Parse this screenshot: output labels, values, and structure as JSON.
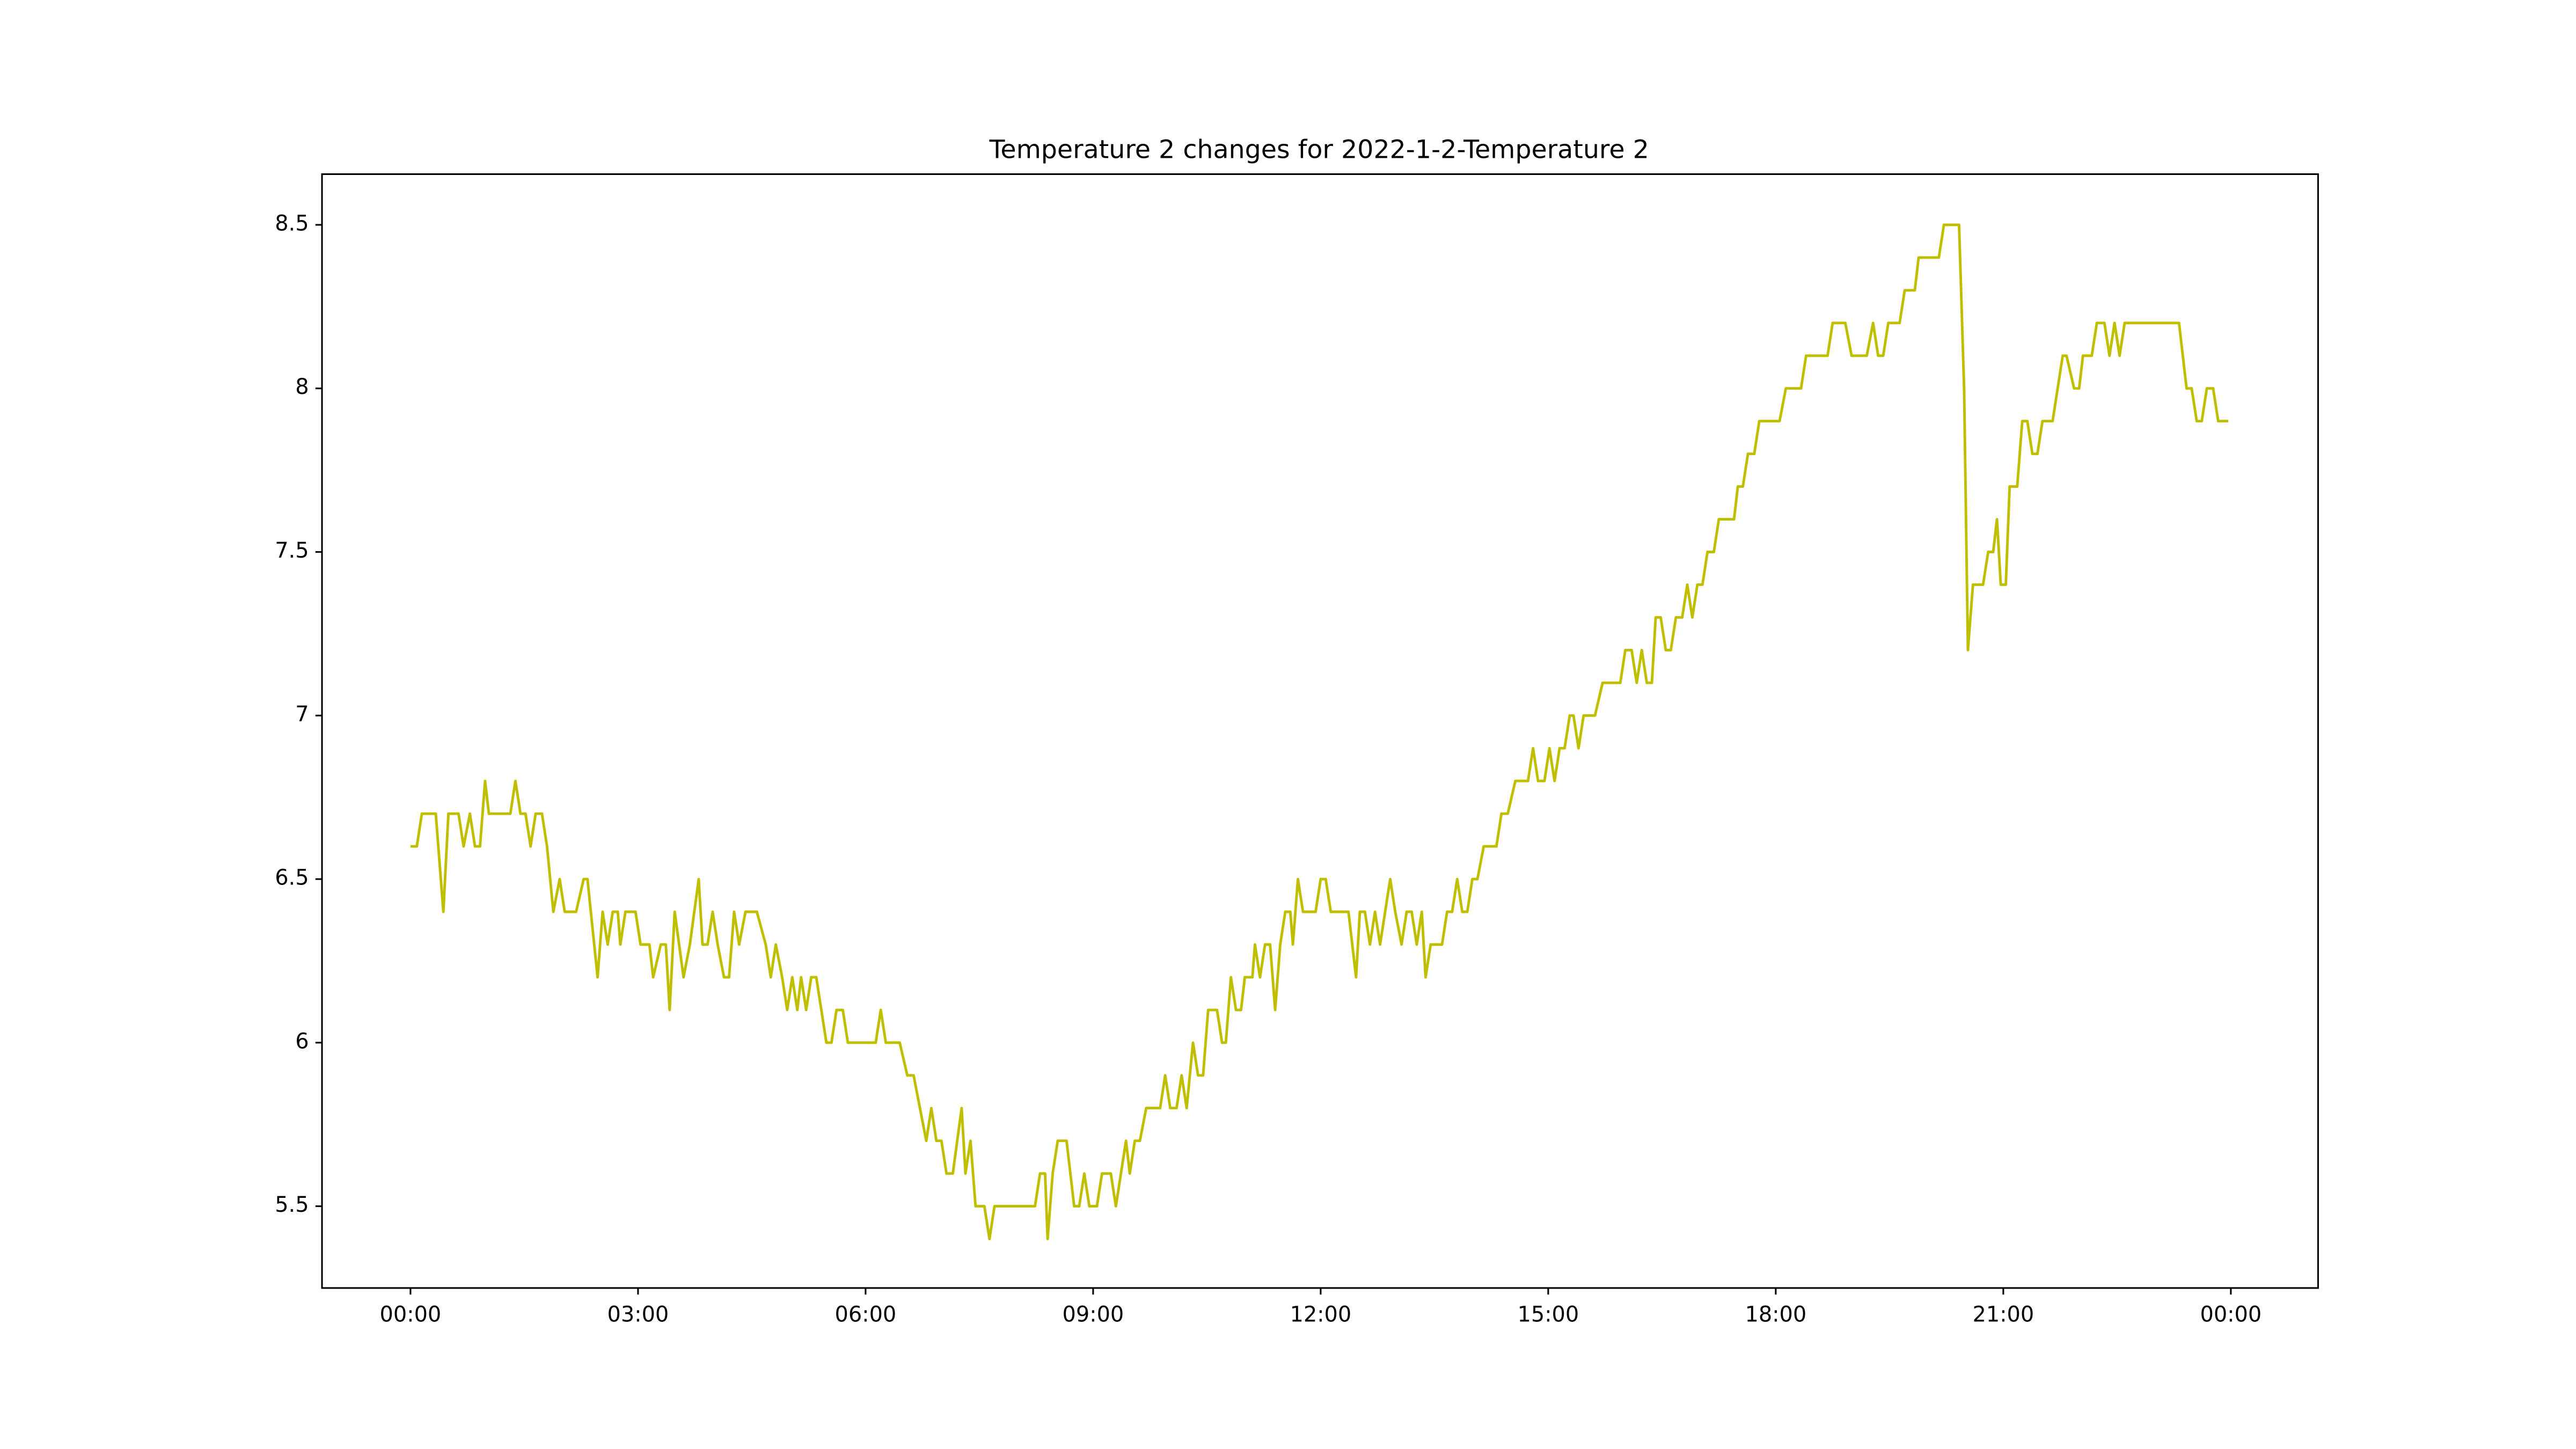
{
  "chart_data": {
    "type": "line",
    "title": "Temperature 2 changes for 2022-1-2-Temperature 2",
    "x": [
      0,
      5,
      9,
      20,
      26,
      30,
      38,
      42,
      47,
      51,
      55,
      59,
      62,
      79,
      83,
      87,
      91,
      95,
      99,
      104,
      108,
      113,
      118,
      122,
      131,
      137,
      140,
      148,
      152,
      156,
      160,
      164,
      166,
      170,
      178,
      182,
      189,
      192,
      198,
      202,
      205,
      209,
      216,
      221,
      228,
      231,
      235,
      239,
      243,
      248,
      252,
      256,
      260,
      265,
      274,
      281,
      285,
      289,
      294,
      298,
      302,
      306,
      309,
      313,
      317,
      321,
      325,
      329,
      333,
      337,
      342,
      346,
      368,
      372,
      376,
      387,
      393,
      398,
      403,
      408,
      412,
      416,
      420,
      424,
      429,
      436,
      439,
      443,
      447,
      454,
      458,
      462,
      494,
      498,
      502,
      504,
      508,
      512,
      519,
      525,
      529,
      533,
      537,
      543,
      547,
      554,
      558,
      562,
      566,
      569,
      573,
      577,
      582,
      593,
      597,
      601,
      606,
      610,
      614,
      619,
      623,
      627,
      631,
      638,
      642,
      645,
      649,
      653,
      657,
      660,
      666,
      668,
      672,
      676,
      680,
      684,
      688,
      692,
      696,
      698,
      702,
      706,
      716,
      720,
      724,
      728,
      742,
      748,
      751,
      755,
      759,
      763,
      767,
      771,
      775,
      779,
      784,
      788,
      792,
      796,
      800,
      803,
      807,
      816,
      820,
      824,
      828,
      832,
      836,
      840,
      844,
      849,
      859,
      863,
      868,
      874,
      884,
      888,
      892,
      897,
      901,
      905,
      909,
      913,
      917,
      920,
      924,
      928,
      937,
      943,
      957,
      961,
      966,
      970,
      974,
      978,
      982,
      985,
      989,
      993,
      997,
      1001,
      1006,
      1010,
      1014,
      1018,
      1022,
      1026,
      1031,
      1035,
      1047,
      1050,
      1054,
      1058,
      1063,
      1067,
      1083,
      1088,
      1100,
      1104,
      1121,
      1125,
      1135,
      1140,
      1152,
      1157,
      1161,
      1165,
      1169,
      1178,
      1182,
      1190,
      1193,
      1209,
      1213,
      1225,
      1229,
      1232,
      1236,
      1244,
      1248,
      1252,
      1255,
      1258,
      1262,
      1265,
      1271,
      1275,
      1279,
      1283,
      1287,
      1291,
      1299,
      1303,
      1307,
      1310,
      1316,
      1320,
      1323,
      1330,
      1334,
      1340,
      1344,
      1348,
      1352,
      1356,
      1399,
      1405,
      1409,
      1413,
      1417,
      1421,
      1426,
      1430,
      1438
    ],
    "series": [
      {
        "color": "#bfbf00",
        "values": [
          6.6,
          6.6,
          6.7,
          6.7,
          6.4,
          6.7,
          6.7,
          6.6,
          6.7,
          6.6,
          6.6,
          6.8,
          6.7,
          6.7,
          6.8,
          6.7,
          6.7,
          6.6,
          6.7,
          6.7,
          6.6,
          6.4,
          6.5,
          6.4,
          6.4,
          6.5,
          6.5,
          6.2,
          6.4,
          6.3,
          6.4,
          6.4,
          6.3,
          6.4,
          6.4,
          6.3,
          6.3,
          6.2,
          6.3,
          6.3,
          6.1,
          6.4,
          6.2,
          6.3,
          6.5,
          6.3,
          6.3,
          6.4,
          6.3,
          6.2,
          6.2,
          6.4,
          6.3,
          6.4,
          6.4,
          6.3,
          6.2,
          6.3,
          6.2,
          6.1,
          6.2,
          6.1,
          6.2,
          6.1,
          6.2,
          6.2,
          6.1,
          6.0,
          6.0,
          6.1,
          6.1,
          6.0,
          6.0,
          6.1,
          6.0,
          6.0,
          5.9,
          5.9,
          5.8,
          5.7,
          5.8,
          5.7,
          5.7,
          5.6,
          5.6,
          5.8,
          5.6,
          5.7,
          5.5,
          5.5,
          5.4,
          5.5,
          5.5,
          5.6,
          5.6,
          5.4,
          5.6,
          5.7,
          5.7,
          5.5,
          5.5,
          5.6,
          5.5,
          5.5,
          5.6,
          5.6,
          5.5,
          5.6,
          5.7,
          5.6,
          5.7,
          5.7,
          5.8,
          5.8,
          5.9,
          5.8,
          5.8,
          5.9,
          5.8,
          6.0,
          5.9,
          5.9,
          6.1,
          6.1,
          6.0,
          6.0,
          6.2,
          6.1,
          6.1,
          6.2,
          6.2,
          6.3,
          6.2,
          6.3,
          6.3,
          6.1,
          6.3,
          6.4,
          6.4,
          6.3,
          6.5,
          6.4,
          6.4,
          6.5,
          6.5,
          6.4,
          6.4,
          6.2,
          6.4,
          6.4,
          6.3,
          6.4,
          6.3,
          6.4,
          6.5,
          6.4,
          6.3,
          6.4,
          6.4,
          6.3,
          6.4,
          6.2,
          6.3,
          6.3,
          6.4,
          6.4,
          6.5,
          6.4,
          6.4,
          6.5,
          6.5,
          6.6,
          6.6,
          6.7,
          6.7,
          6.8,
          6.8,
          6.9,
          6.8,
          6.8,
          6.9,
          6.8,
          6.9,
          6.9,
          7.0,
          7.0,
          6.9,
          7.0,
          7.0,
          7.1,
          7.1,
          7.2,
          7.2,
          7.1,
          7.2,
          7.1,
          7.1,
          7.3,
          7.3,
          7.2,
          7.2,
          7.3,
          7.3,
          7.4,
          7.3,
          7.4,
          7.4,
          7.5,
          7.5,
          7.6,
          7.6,
          7.7,
          7.7,
          7.8,
          7.8,
          7.9,
          7.9,
          8.0,
          8.0,
          8.1,
          8.1,
          8.2,
          8.2,
          8.1,
          8.1,
          8.2,
          8.1,
          8.1,
          8.2,
          8.2,
          8.3,
          8.3,
          8.4,
          8.4,
          8.5,
          8.5,
          8.0,
          7.2,
          7.4,
          7.4,
          7.5,
          7.5,
          7.6,
          7.4,
          7.4,
          7.7,
          7.7,
          7.9,
          7.9,
          7.8,
          7.8,
          7.9,
          7.9,
          8.0,
          8.1,
          8.1,
          8.0,
          8.0,
          8.1,
          8.1,
          8.2,
          8.2,
          8.1,
          8.2,
          8.1,
          8.2,
          8.2,
          8.0,
          8.0,
          7.9,
          7.9,
          8.0,
          8.0,
          7.9,
          7.9
        ]
      }
    ],
    "xlim": [
      -70,
      1509
    ],
    "xticks": [
      {
        "value": 0,
        "label": "00:00"
      },
      {
        "value": 180,
        "label": "03:00"
      },
      {
        "value": 360,
        "label": "06:00"
      },
      {
        "value": 540,
        "label": "09:00"
      },
      {
        "value": 720,
        "label": "12:00"
      },
      {
        "value": 900,
        "label": "15:00"
      },
      {
        "value": 1080,
        "label": "18:00"
      },
      {
        "value": 1260,
        "label": "21:00"
      },
      {
        "value": 1440,
        "label": "00:00"
      }
    ],
    "ylim": [
      5.25,
      8.655
    ],
    "yticks": [
      5.5,
      6.0,
      6.5,
      7.0,
      7.5,
      8.0,
      8.5
    ],
    "grid": false
  }
}
